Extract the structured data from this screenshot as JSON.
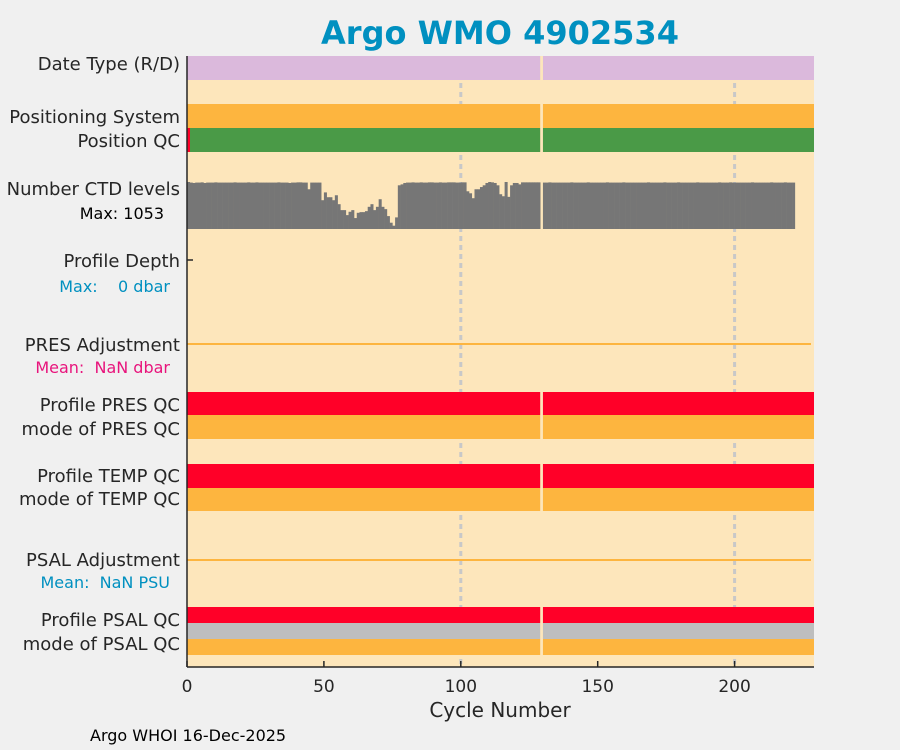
{
  "colors": {
    "background": "#f0f0f0",
    "plot_bg": "#fde6bb",
    "lavender": "#dbb9dc",
    "orange": "#fdb53f",
    "green": "#4a9a47",
    "red": "#ff0028",
    "gray": "#767676",
    "light_gray": "#bebebe",
    "title": "#0090c0",
    "pink": "#e8147c",
    "grid": "#c8c8c8"
  },
  "chart_data": {
    "type": "bar",
    "title": "Argo WMO 4902534",
    "xlabel": "Cycle Number",
    "xlim": [
      0,
      229
    ],
    "xticks": [
      0,
      50,
      100,
      150,
      200
    ],
    "xtick_labels": [
      "0",
      "50",
      "100",
      "150",
      "200"
    ],
    "missing_cycles": [
      129
    ],
    "grid_x": [
      100,
      200
    ],
    "rows": {
      "date_type": {
        "label": "Date Type (R/D)",
        "color": "lavender"
      },
      "positioning_system": {
        "label": "Positioning System",
        "color": "orange"
      },
      "position_qc": {
        "label": "Position QC",
        "color": "green",
        "exceptions": [
          {
            "from": 0,
            "to": 1,
            "color": "red"
          }
        ]
      },
      "ctd_levels": {
        "label": "Number CTD levels",
        "max_label": "Max: 1053",
        "max": 1053
      },
      "profile_depth": {
        "label": "Profile Depth",
        "max_label": "Max:    0 dbar"
      },
      "pres_adjustment": {
        "label": "PRES Adjustment",
        "mean_label": "Mean:  NaN dbar"
      },
      "profile_pres_qc": {
        "label": "Profile PRES QC",
        "color": "red"
      },
      "mode_pres_qc": {
        "label": "mode of PRES QC",
        "color": "orange"
      },
      "profile_temp_qc": {
        "label": "Profile TEMP QC",
        "color": "red"
      },
      "mode_temp_qc": {
        "label": "mode of TEMP QC",
        "color": "orange"
      },
      "psal_adjustment": {
        "label": "PSAL Adjustment",
        "mean_label": "Mean:  NaN PSU"
      },
      "profile_psal_qc": {
        "label": "Profile PSAL QC",
        "color": "red"
      },
      "mode_psal_qc": {
        "label": "mode of PSAL QC",
        "color": "orange"
      }
    },
    "ctd_values": [
      1053,
      1040,
      1031,
      1040,
      1040,
      1045,
      1031,
      1040,
      1040,
      1040,
      1045,
      1040,
      1040,
      1040,
      1040,
      1040,
      1040,
      1045,
      1040,
      1040,
      1040,
      1040,
      1045,
      1040,
      1040,
      1045,
      1040,
      1040,
      1040,
      1040,
      1040,
      1040,
      1040,
      1045,
      1040,
      1040,
      1040,
      1031,
      1040,
      1040,
      1045,
      1045,
      1040,
      1040,
      890,
      1040,
      1040,
      1040,
      1040,
      645,
      820,
      712,
      712,
      645,
      756,
      556,
      423,
      423,
      311,
      386,
      423,
      245,
      363,
      378,
      378,
      400,
      497,
      556,
      423,
      497,
      667,
      497,
      445,
      289,
      141,
      74,
      260,
      979,
      1000,
      1031,
      1040,
      1040,
      1045,
      1040,
      1040,
      1045,
      1040,
      1040,
      1045,
      1045,
      1040,
      1040,
      1045,
      1040,
      1040,
      1045,
      1045,
      1045,
      1040,
      1040,
      1045,
      1045,
      845,
      800,
      690,
      890,
      890,
      940,
      979,
      1031,
      1053,
      1045,
      1031,
      979,
      779,
      734,
      1053,
      720,
      979,
      1031,
      1031,
      1000,
      1045,
      1045,
      1045,
      1045,
      1045,
      1045,
      1045,
      null,
      1040,
      1040,
      1045,
      1040,
      1040,
      1040,
      1040,
      1040,
      1040,
      1040,
      1045,
      1040,
      1040,
      1040,
      1040,
      1040,
      1045,
      1040,
      1040,
      1040,
      1040,
      1040,
      1040,
      1045,
      1040,
      1040,
      1040,
      1040,
      1040,
      1045,
      1040,
      1040,
      1040,
      1040,
      1040,
      1040,
      1040,
      1040,
      1045,
      1040,
      1040,
      1040,
      1040,
      1040,
      1045,
      1040,
      1040,
      1040,
      1040,
      1045,
      1040,
      1040,
      1040,
      1040,
      1040,
      1040,
      1045,
      1040,
      1040,
      1040,
      1040,
      1040,
      1040,
      1040,
      1045,
      1040,
      1040,
      1040,
      1045,
      1040,
      1040,
      1040,
      1040,
      1040,
      1040,
      1040,
      1045,
      1040,
      1040,
      1040,
      1040,
      1040,
      1040,
      1045,
      1040,
      1040,
      1040,
      1040,
      1045,
      1040,
      1040,
      1040
    ]
  },
  "footer": "Argo WHOI 16-Dec-2025"
}
